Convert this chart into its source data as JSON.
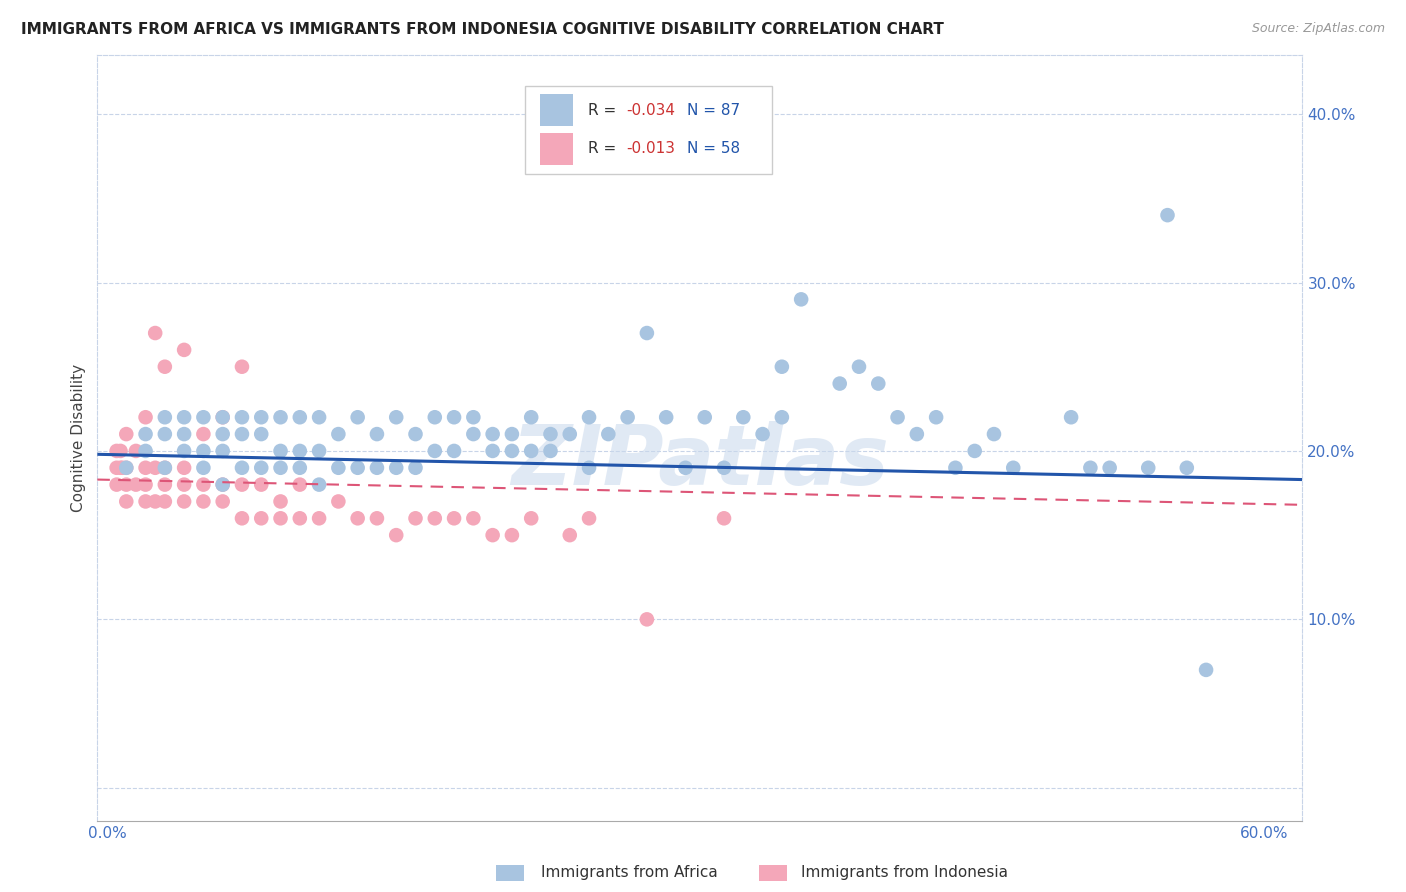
{
  "title": "IMMIGRANTS FROM AFRICA VS IMMIGRANTS FROM INDONESIA COGNITIVE DISABILITY CORRELATION CHART",
  "source": "Source: ZipAtlas.com",
  "ylabel": "Cognitive Disability",
  "blue_R": "-0.034",
  "blue_N": "87",
  "pink_R": "-0.013",
  "pink_N": "58",
  "blue_color": "#a8c4e0",
  "pink_color": "#f4a7b9",
  "blue_line_color": "#2255aa",
  "pink_line_color": "#dd5577",
  "background_color": "#ffffff",
  "grid_color": "#c8d4e8",
  "watermark": "ZIPatlas",
  "blue_scatter_x": [
    0.01,
    0.02,
    0.02,
    0.03,
    0.03,
    0.03,
    0.04,
    0.04,
    0.04,
    0.05,
    0.05,
    0.05,
    0.06,
    0.06,
    0.06,
    0.06,
    0.07,
    0.07,
    0.07,
    0.08,
    0.08,
    0.08,
    0.09,
    0.09,
    0.09,
    0.1,
    0.1,
    0.1,
    0.11,
    0.11,
    0.11,
    0.12,
    0.12,
    0.13,
    0.13,
    0.14,
    0.14,
    0.15,
    0.15,
    0.16,
    0.16,
    0.17,
    0.17,
    0.18,
    0.18,
    0.19,
    0.19,
    0.2,
    0.2,
    0.21,
    0.21,
    0.22,
    0.22,
    0.23,
    0.23,
    0.24,
    0.25,
    0.25,
    0.26,
    0.27,
    0.28,
    0.29,
    0.3,
    0.31,
    0.32,
    0.33,
    0.34,
    0.35,
    0.35,
    0.36,
    0.38,
    0.39,
    0.4,
    0.41,
    0.42,
    0.43,
    0.44,
    0.45,
    0.46,
    0.47,
    0.5,
    0.51,
    0.52,
    0.54,
    0.55,
    0.56,
    0.57
  ],
  "blue_scatter_y": [
    0.19,
    0.2,
    0.21,
    0.19,
    0.21,
    0.22,
    0.2,
    0.21,
    0.22,
    0.19,
    0.2,
    0.22,
    0.18,
    0.2,
    0.21,
    0.22,
    0.19,
    0.21,
    0.22,
    0.19,
    0.21,
    0.22,
    0.19,
    0.2,
    0.22,
    0.19,
    0.2,
    0.22,
    0.18,
    0.2,
    0.22,
    0.19,
    0.21,
    0.19,
    0.22,
    0.19,
    0.21,
    0.19,
    0.22,
    0.19,
    0.21,
    0.2,
    0.22,
    0.2,
    0.22,
    0.21,
    0.22,
    0.2,
    0.21,
    0.2,
    0.21,
    0.2,
    0.22,
    0.2,
    0.21,
    0.21,
    0.19,
    0.22,
    0.21,
    0.22,
    0.27,
    0.22,
    0.19,
    0.22,
    0.19,
    0.22,
    0.21,
    0.22,
    0.25,
    0.29,
    0.24,
    0.25,
    0.24,
    0.22,
    0.21,
    0.22,
    0.19,
    0.2,
    0.21,
    0.19,
    0.22,
    0.19,
    0.19,
    0.19,
    0.34,
    0.19,
    0.07
  ],
  "pink_scatter_x": [
    0.005,
    0.005,
    0.005,
    0.007,
    0.007,
    0.008,
    0.01,
    0.01,
    0.01,
    0.01,
    0.015,
    0.015,
    0.02,
    0.02,
    0.02,
    0.02,
    0.025,
    0.025,
    0.025,
    0.03,
    0.03,
    0.03,
    0.03,
    0.04,
    0.04,
    0.04,
    0.04,
    0.05,
    0.05,
    0.05,
    0.06,
    0.06,
    0.06,
    0.07,
    0.07,
    0.07,
    0.08,
    0.08,
    0.09,
    0.09,
    0.1,
    0.1,
    0.11,
    0.12,
    0.13,
    0.14,
    0.15,
    0.16,
    0.17,
    0.18,
    0.19,
    0.2,
    0.21,
    0.22,
    0.24,
    0.25,
    0.28,
    0.32
  ],
  "pink_scatter_y": [
    0.18,
    0.19,
    0.2,
    0.19,
    0.2,
    0.19,
    0.17,
    0.18,
    0.19,
    0.21,
    0.18,
    0.2,
    0.17,
    0.18,
    0.19,
    0.22,
    0.17,
    0.19,
    0.27,
    0.17,
    0.18,
    0.19,
    0.25,
    0.17,
    0.18,
    0.19,
    0.26,
    0.17,
    0.18,
    0.21,
    0.17,
    0.18,
    0.22,
    0.16,
    0.18,
    0.25,
    0.16,
    0.18,
    0.16,
    0.17,
    0.16,
    0.18,
    0.16,
    0.17,
    0.16,
    0.16,
    0.15,
    0.16,
    0.16,
    0.16,
    0.16,
    0.15,
    0.15,
    0.16,
    0.15,
    0.16,
    0.1,
    0.16
  ],
  "blue_trend": [
    0.198,
    0.183
  ],
  "pink_trend": [
    0.183,
    0.168
  ],
  "xlim": [
    -0.005,
    0.62
  ],
  "ylim": [
    -0.02,
    0.435
  ],
  "yticks": [
    0.0,
    0.1,
    0.2,
    0.3,
    0.4
  ],
  "ytick_labels": [
    "",
    "10.0%",
    "20.0%",
    "30.0%",
    "40.0%"
  ],
  "xticks": [
    0.0,
    0.1,
    0.2,
    0.3,
    0.4,
    0.5,
    0.6
  ],
  "xtick_labels": [
    "0.0%",
    "",
    "",
    "",
    "",
    "",
    "60.0%"
  ],
  "tick_color": "#4472c4",
  "legend_blue_text": "R = ",
  "legend_blue_r": "-0.034",
  "legend_blue_n": "N = 87",
  "legend_pink_text": "R = ",
  "legend_pink_r": "-0.013",
  "legend_pink_n": "N = 58"
}
